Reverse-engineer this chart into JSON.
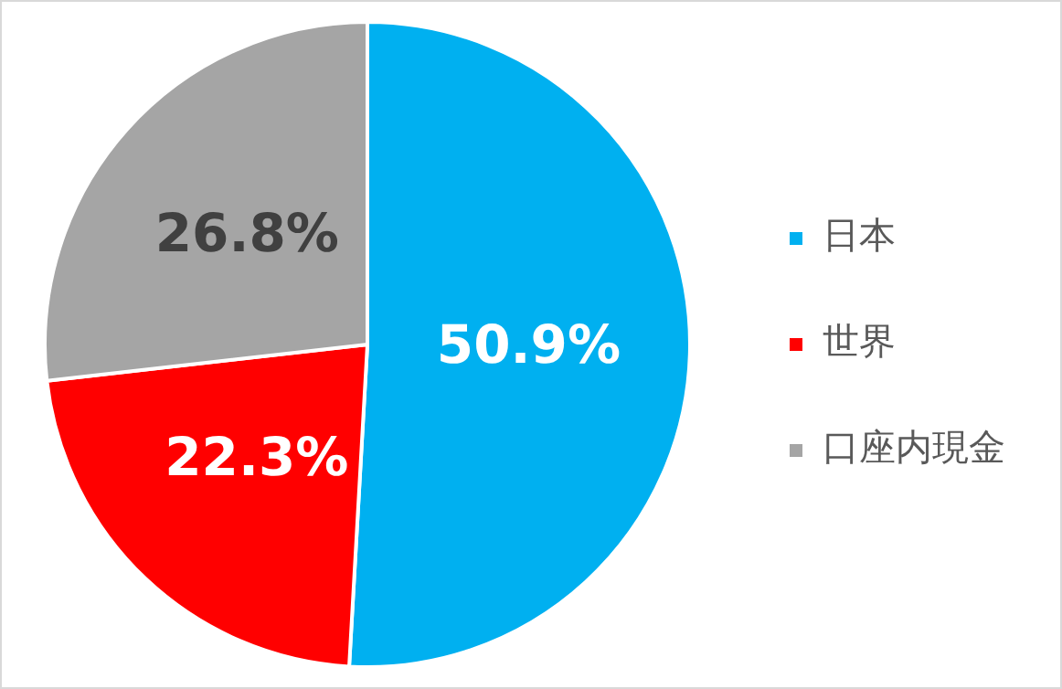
{
  "chart_data": {
    "type": "pie",
    "categories": [
      "日本",
      "世界",
      "口座内現金"
    ],
    "values": [
      50.9,
      22.3,
      26.8
    ],
    "colors": [
      "#00b0f0",
      "#ff0000",
      "#a5a5a5"
    ],
    "value_labels": [
      "50.9%",
      "22.3%",
      "26.8%"
    ],
    "legend": "right"
  }
}
